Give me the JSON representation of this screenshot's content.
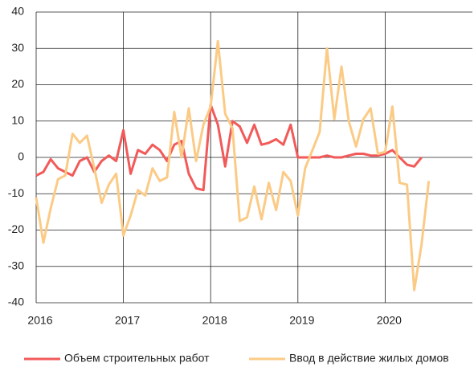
{
  "chart_data": {
    "type": "line",
    "xlim": [
      2016,
      2021
    ],
    "xticks": [
      2016,
      2017,
      2018,
      2019,
      2020
    ],
    "ylim": [
      -40,
      40
    ],
    "yticks": [
      -40,
      -30,
      -20,
      -10,
      0,
      10,
      20,
      30,
      40
    ],
    "grid": true,
    "legend": "bottom",
    "series": [
      {
        "name": "Объем строительных работ",
        "color": "#f25a5a",
        "x": [
          2016,
          2016.083,
          2016.167,
          2016.25,
          2016.333,
          2016.417,
          2016.5,
          2016.583,
          2016.667,
          2016.75,
          2016.833,
          2016.917,
          2017,
          2017.083,
          2017.167,
          2017.25,
          2017.333,
          2017.417,
          2017.5,
          2017.583,
          2017.667,
          2017.75,
          2017.833,
          2017.917,
          2018,
          2018.083,
          2018.167,
          2018.25,
          2018.333,
          2018.417,
          2018.5,
          2018.583,
          2018.667,
          2018.75,
          2018.833,
          2018.917,
          2019,
          2019.083,
          2019.167,
          2019.25,
          2019.333,
          2019.417,
          2019.5,
          2019.583,
          2019.667,
          2019.75,
          2019.833,
          2019.917,
          2020,
          2020.083,
          2020.167,
          2020.25,
          2020.333,
          2020.417
        ],
        "values": [
          -5,
          -4,
          -0.5,
          -3,
          -4,
          -5,
          -1,
          0,
          -4,
          -1,
          0.5,
          -1,
          7.5,
          -4.5,
          2,
          1,
          3.5,
          2,
          -1,
          3.5,
          4.5,
          -4.5,
          -8.5,
          -9,
          14.5,
          9,
          -2.5,
          10,
          8.5,
          4,
          9,
          3.5,
          4,
          5,
          3.5,
          9,
          0,
          0,
          0,
          0,
          0.5,
          0,
          0,
          0.5,
          1,
          1,
          0.5,
          0.5,
          1,
          2,
          0,
          -2,
          -2.5,
          0
        ]
      },
      {
        "name": "Ввод в действие жилых домов",
        "color": "#fbcb86",
        "x": [
          2016,
          2016.083,
          2016.167,
          2016.25,
          2016.333,
          2016.417,
          2016.5,
          2016.583,
          2016.667,
          2016.75,
          2016.833,
          2016.917,
          2017,
          2017.083,
          2017.167,
          2017.25,
          2017.333,
          2017.417,
          2017.5,
          2017.583,
          2017.667,
          2017.75,
          2017.833,
          2017.917,
          2018,
          2018.083,
          2018.167,
          2018.25,
          2018.333,
          2018.417,
          2018.5,
          2018.583,
          2018.667,
          2018.75,
          2018.833,
          2018.917,
          2019,
          2019.083,
          2019.167,
          2019.25,
          2019.333,
          2019.417,
          2019.5,
          2019.583,
          2019.667,
          2019.75,
          2019.833,
          2019.917,
          2020,
          2020.083,
          2020.167,
          2020.25,
          2020.333,
          2020.417,
          2020.5
        ],
        "values": [
          -11,
          -23.5,
          -14,
          -6,
          -5,
          6.5,
          4,
          6,
          -3,
          -12.5,
          -7.5,
          -4.5,
          -21.5,
          -16,
          -9,
          -10.5,
          -3,
          -6.5,
          -5.5,
          12.5,
          0,
          13.5,
          -1,
          9,
          14,
          32,
          12,
          8,
          -17.5,
          -16.5,
          -8,
          -17,
          -7,
          -14.5,
          -4,
          -6.5,
          -16,
          -3,
          2,
          7,
          30,
          10.5,
          25,
          10,
          3,
          10.5,
          13.5,
          1,
          1.5,
          14,
          -7,
          -7.5,
          -36.5,
          -24,
          -6.5
        ]
      }
    ]
  }
}
